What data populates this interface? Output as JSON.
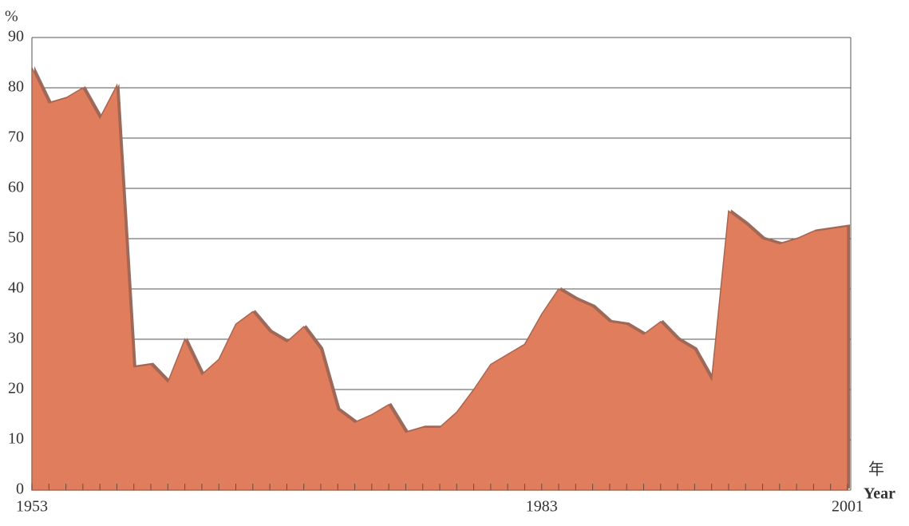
{
  "chart_data": {
    "type": "area",
    "y_unit": "%",
    "x_label_cn": "年",
    "x_label": "Year",
    "x": [
      1953,
      1954,
      1955,
      1956,
      1957,
      1958,
      1959,
      1960,
      1961,
      1962,
      1963,
      1964,
      1965,
      1966,
      1967,
      1968,
      1969,
      1970,
      1971,
      1972,
      1973,
      1974,
      1975,
      1976,
      1977,
      1978,
      1979,
      1980,
      1981,
      1982,
      1983,
      1984,
      1985,
      1986,
      1987,
      1988,
      1989,
      1990,
      1991,
      1992,
      1993,
      1994,
      1995,
      1996,
      1997,
      1998,
      1999,
      2000,
      2001
    ],
    "values": [
      84,
      77,
      78,
      80,
      74,
      80.5,
      24.5,
      25,
      21.5,
      30,
      23,
      26,
      33,
      35.5,
      31.5,
      29.5,
      32.5,
      28,
      16,
      13.5,
      15,
      17,
      11.5,
      12.5,
      12.5,
      15.5,
      20,
      25,
      27,
      29,
      35,
      40,
      38,
      36.5,
      33.5,
      33,
      31,
      33.5,
      30,
      28,
      22,
      55.5,
      53,
      50,
      49,
      50,
      51.5,
      52,
      52.5
    ],
    "color": "#df7d5c",
    "xlim": [
      1953,
      2001
    ],
    "xticks": [
      1953,
      1983,
      2001
    ],
    "ylim": [
      0,
      90
    ],
    "yticks": [
      0,
      10,
      20,
      30,
      40,
      50,
      60,
      70,
      80,
      90
    ],
    "grid": true
  }
}
